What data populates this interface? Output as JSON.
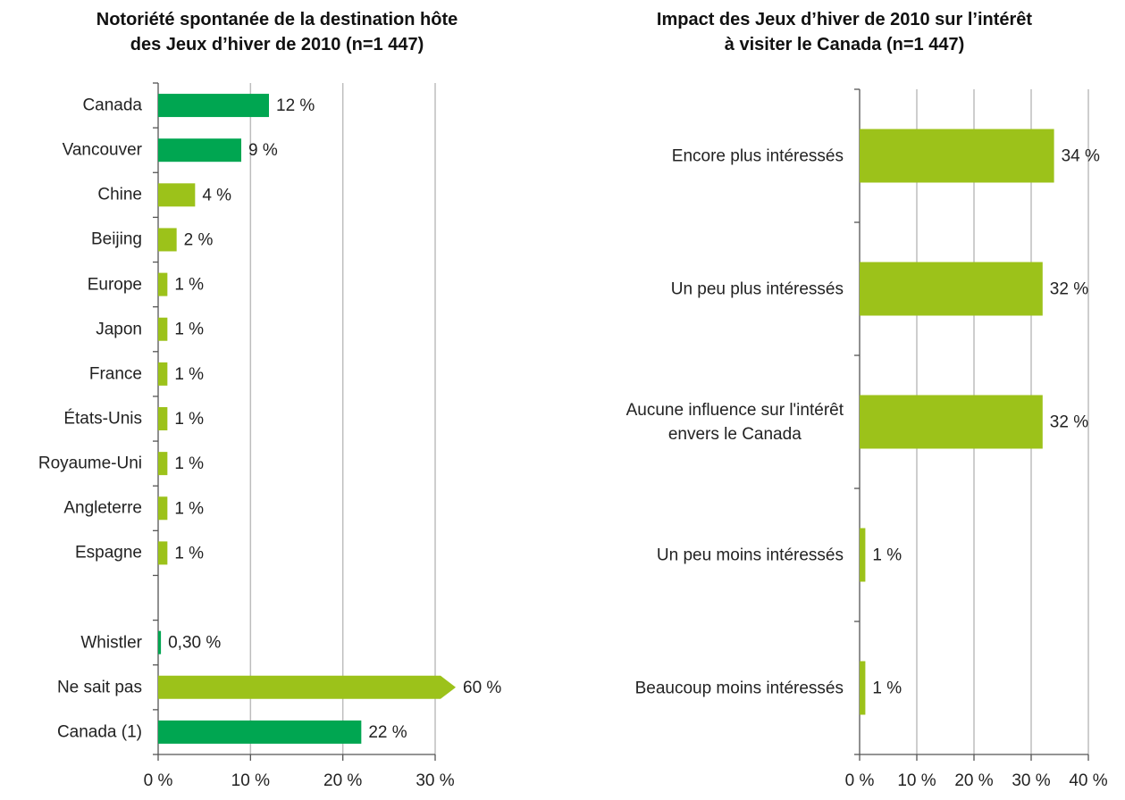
{
  "chart_data": [
    {
      "type": "barh",
      "title": "Notoriété spontanée de la destination hôte\ndes Jeux d’hiver de 2010 (n=1 447)",
      "categories": [
        "Canada",
        "Vancouver",
        "Chine",
        "Beijing",
        "Europe",
        "Japon",
        "France",
        "États-Unis",
        "Royaume-Uni",
        "Angleterre",
        "Espagne",
        null,
        "Whistler",
        "Ne sait pas",
        "Canada (1)"
      ],
      "values": [
        12,
        9,
        4,
        2,
        1,
        1,
        1,
        1,
        1,
        1,
        1,
        null,
        0.3,
        60,
        22
      ],
      "value_labels": [
        "12 %",
        "9 %",
        "4 %",
        "2 %",
        "1 %",
        "1 %",
        "1 %",
        "1 %",
        "1 %",
        "1 %",
        "1 %",
        null,
        "0,30 %",
        "60 %",
        "22 %"
      ],
      "colors": [
        "#00a651",
        "#00a651",
        "#9cc21a",
        "#9cc21a",
        "#9cc21a",
        "#9cc21a",
        "#9cc21a",
        "#9cc21a",
        "#9cc21a",
        "#9cc21a",
        "#9cc21a",
        null,
        "#00a651",
        "#9cc21a",
        "#00a651"
      ],
      "xlim": [
        0,
        30
      ],
      "xticks": [
        {
          "value": 0,
          "label": "0 %"
        },
        {
          "value": 10,
          "label": "10 %"
        },
        {
          "value": 20,
          "label": "20 %"
        },
        {
          "value": 30,
          "label": "30 %"
        }
      ],
      "grid": true
    },
    {
      "type": "barh",
      "title": "Impact des Jeux d’hiver de 2010 sur l’intérêt\nà visiter le Canada (n=1 447)",
      "categories": [
        "Encore plus intéressés",
        "Un peu plus intéressés",
        "Aucune influence sur l'intérêt\nenvers le Canada",
        "Un peu moins intéressés",
        "Beaucoup moins intéressés"
      ],
      "values": [
        34,
        32,
        32,
        1,
        1
      ],
      "value_labels": [
        "34 %",
        "32 %",
        "32 %",
        "1 %",
        "1 %"
      ],
      "colors": [
        "#9cc21a",
        "#9cc21a",
        "#9cc21a",
        "#9cc21a",
        "#9cc21a"
      ],
      "xlim": [
        0,
        40
      ],
      "xticks": [
        {
          "value": 0,
          "label": "0 %"
        },
        {
          "value": 10,
          "label": "10 %"
        },
        {
          "value": 20,
          "label": "20 %"
        },
        {
          "value": 30,
          "label": "30 %"
        },
        {
          "value": 40,
          "label": "40 %"
        }
      ],
      "grid": true
    }
  ]
}
